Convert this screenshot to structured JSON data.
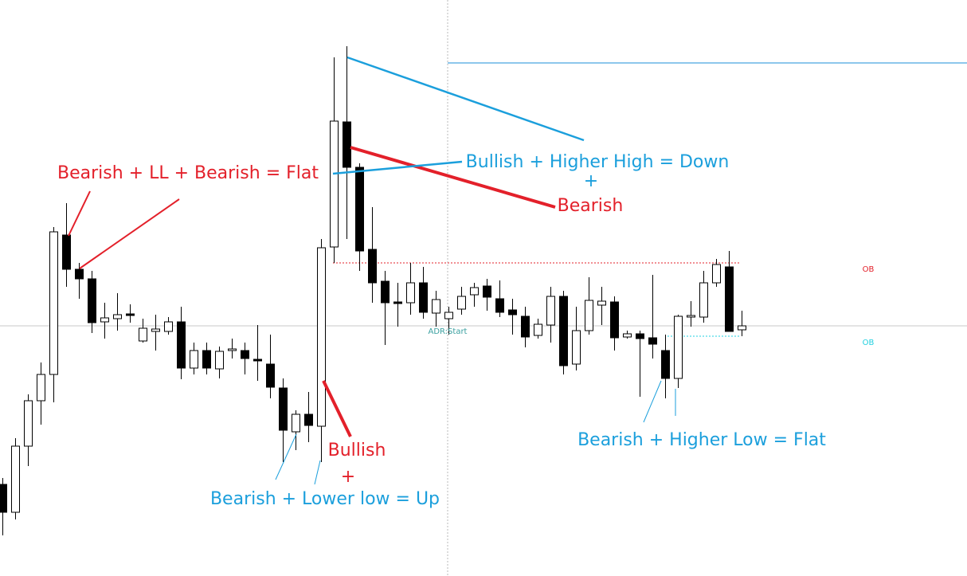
{
  "chart_data": {
    "type": "candlestick",
    "ylim": [
      0,
      723
    ],
    "up_color": "#ffffff",
    "down_color": "#000000",
    "outline_color": "#000000",
    "open": [
      115,
      80,
      163,
      220,
      253,
      428,
      385,
      373,
      319,
      323,
      329,
      295,
      307,
      307,
      319,
      261,
      283,
      260,
      283,
      283,
      272,
      266,
      236,
      181,
      203,
      188,
      413,
      570,
      513,
      410,
      370,
      344,
      343,
      368,
      330,
      323,
      335,
      353,
      364,
      348,
      334,
      326,
      302,
      315,
      351,
      266,
      308,
      340,
      344,
      300,
      304,
      299,
      283,
      248,
      325,
      325,
      368,
      388,
      309
    ],
    "high": [
      123,
      173,
      228,
      268,
      438,
      468,
      393,
      383,
      343,
      355,
      341,
      323,
      328,
      325,
      338,
      293,
      293,
      288,
      298,
      293,
      315,
      303,
      248,
      208,
      231,
      423,
      651,
      665,
      518,
      463,
      383,
      368,
      393,
      388,
      358,
      338,
      363,
      368,
      373,
      371,
      348,
      338,
      323,
      363,
      358,
      338,
      375,
      363,
      351,
      308,
      308,
      378,
      303,
      328,
      345,
      383,
      398,
      408,
      333
    ],
    "low": [
      51,
      71,
      138,
      190,
      218,
      363,
      348,
      305,
      298,
      308,
      318,
      293,
      283,
      303,
      247,
      253,
      253,
      248,
      273,
      253,
      245,
      223,
      143,
      158,
      168,
      143,
      393,
      423,
      383,
      343,
      290,
      313,
      328,
      323,
      313,
      303,
      328,
      338,
      333,
      325,
      303,
      287,
      298,
      293,
      253,
      258,
      303,
      315,
      283,
      298,
      225,
      273,
      223,
      236,
      313,
      318,
      363,
      307,
      301
    ],
    "close": [
      80,
      163,
      220,
      253,
      432,
      385,
      373,
      318,
      324,
      328,
      327,
      311,
      310,
      319,
      261,
      283,
      261,
      282,
      285,
      273,
      270,
      237,
      183,
      203,
      189,
      412,
      571,
      513,
      408,
      368,
      343,
      342,
      368,
      331,
      347,
      331,
      351,
      362,
      350,
      331,
      328,
      300,
      316,
      351,
      264,
      308,
      346,
      345,
      299,
      304,
      298,
      291,
      248,
      326,
      327,
      368,
      391,
      307,
      314
    ],
    "annotations": [
      {
        "text": "Bearish + LL + Bearish = Flat",
        "color": "#e3202a"
      },
      {
        "text": "Bullish + Higher High = Down",
        "color": "#1b9fdc"
      },
      {
        "text": "+",
        "color": "#1b9fdc"
      },
      {
        "text": "Bearish",
        "color": "#e3202a"
      },
      {
        "text": "Bullish",
        "color": "#e3202a"
      },
      {
        "text": "+",
        "color": "#e3202a"
      },
      {
        "text": "Bearish + Lower low = Up",
        "color": "#1b9fdc"
      },
      {
        "text": "Bearish + Higher Low = Flat",
        "color": "#1b9fdc"
      }
    ],
    "level_labels": [
      {
        "text": "OB",
        "color": "#e3202a"
      },
      {
        "text": "OB",
        "color": "#22d0e0"
      }
    ],
    "marker_label": {
      "text": "ADR:Start",
      "color": "#3aa0a0"
    }
  }
}
